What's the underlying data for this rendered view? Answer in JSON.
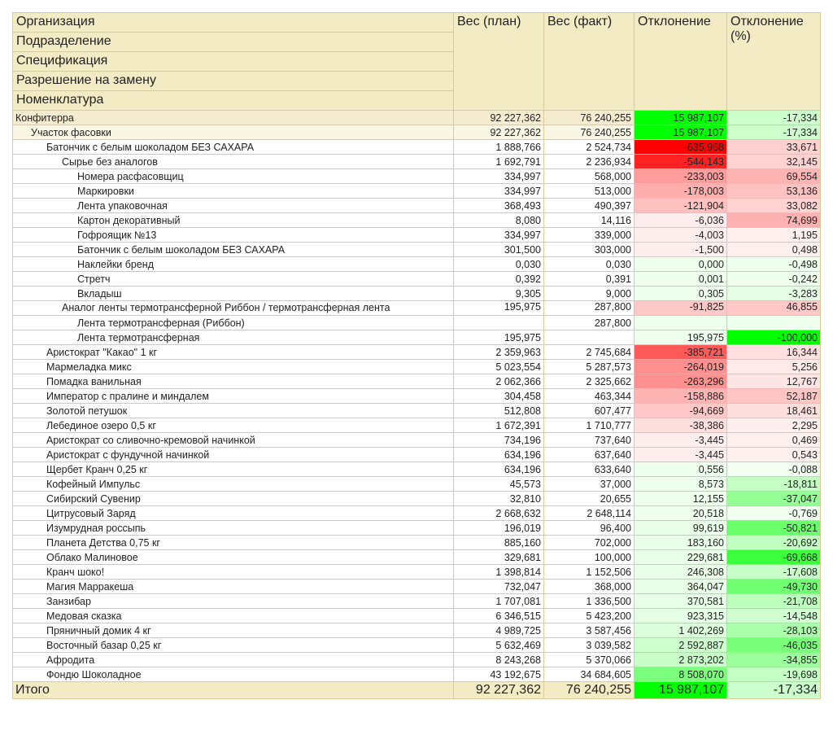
{
  "header": {
    "grouping": [
      "Организация",
      "Подразделение",
      "Спецификация",
      "Разрешение на замену",
      "Номенклатура"
    ],
    "plan": "Вес (план)",
    "fact": "Вес (факт)",
    "deviation": "Отклонение",
    "deviation_pct": "Отклонение (%)"
  },
  "rows": [
    {
      "level": 0,
      "name": "Конфитерра",
      "plan": "92 227,362",
      "fact": "76 240,255",
      "dev": "15 987,107",
      "pct": "-17,334",
      "dev_bg": "#00ff00",
      "pct_bg": "#ccffcc"
    },
    {
      "level": 1,
      "name": "Участок фасовки",
      "plan": "92 227,362",
      "fact": "76 240,255",
      "dev": "15 987,107",
      "pct": "-17,334",
      "dev_bg": "#00ff00",
      "pct_bg": "#ccffcc"
    },
    {
      "level": 2,
      "name": "Батончик с белым шоколадом БЕЗ САХАРА",
      "plan": "1 888,766",
      "fact": "2 524,734",
      "dev": "-635,968",
      "pct": "33,671",
      "dev_bg": "#ff0000",
      "pct_bg": "#ffd0d0"
    },
    {
      "level": 3,
      "name": "Сырье без аналогов",
      "plan": "1 692,791",
      "fact": "2 236,934",
      "dev": "-544,143",
      "pct": "32,145",
      "dev_bg": "#ff2222",
      "pct_bg": "#ffd2d2"
    },
    {
      "level": 4,
      "name": "Номера расфасовщиц",
      "plan": "334,997",
      "fact": "568,000",
      "dev": "-233,003",
      "pct": "69,554",
      "dev_bg": "#ff9c9c",
      "pct_bg": "#ffb4b4"
    },
    {
      "level": 4,
      "name": "Маркировки",
      "plan": "334,997",
      "fact": "513,000",
      "dev": "-178,003",
      "pct": "53,136",
      "dev_bg": "#ffaeae",
      "pct_bg": "#ffc2c2"
    },
    {
      "level": 4,
      "name": "Лента упаковочная",
      "plan": "368,493",
      "fact": "490,397",
      "dev": "-121,904",
      "pct": "33,082",
      "dev_bg": "#ffc0c0",
      "pct_bg": "#ffd2d2"
    },
    {
      "level": 4,
      "name": "Картон декоративный",
      "plan": "8,080",
      "fact": "14,116",
      "dev": "-6,036",
      "pct": "74,699",
      "dev_bg": "#ffecec",
      "pct_bg": "#ffb0b0"
    },
    {
      "level": 4,
      "name": "Гофроящик №13",
      "plan": "334,997",
      "fact": "339,000",
      "dev": "-4,003",
      "pct": "1,195",
      "dev_bg": "#ffeeee",
      "pct_bg": "#fff0f0"
    },
    {
      "level": 4,
      "name": "Батончик с белым шоколадом БЕЗ САХАРА",
      "plan": "301,500",
      "fact": "303,000",
      "dev": "-1,500",
      "pct": "0,498",
      "dev_bg": "#ffeeee",
      "pct_bg": "#fff0f0"
    },
    {
      "level": 4,
      "name": "Наклейки бренд",
      "plan": "0,030",
      "fact": "0,030",
      "dev": "0,000",
      "pct": "-0,498",
      "dev_bg": "#eeffee",
      "pct_bg": "#eeffee"
    },
    {
      "level": 4,
      "name": "Стретч",
      "plan": "0,392",
      "fact": "0,391",
      "dev": "0,001",
      "pct": "-0,242",
      "dev_bg": "#eeffee",
      "pct_bg": "#eeffee"
    },
    {
      "level": 4,
      "name": "Вкладыш",
      "plan": "9,305",
      "fact": "9,000",
      "dev": "0,305",
      "pct": "-3,283",
      "dev_bg": "#eeffee",
      "pct_bg": "#e6ffe6"
    },
    {
      "level": 3,
      "name": "Аналог ленты термотрансферной Риббон / термотрансферная лента",
      "plan": "195,975",
      "fact": "287,800",
      "dev": "-91,825",
      "pct": "46,855",
      "dev_bg": "#ffc8c8",
      "pct_bg": "#ffc8c8",
      "wrap": true
    },
    {
      "level": 4,
      "name": "Лента термотрансферная (Риббон)",
      "plan": "",
      "fact": "287,800",
      "dev": "",
      "pct": "",
      "dev_bg": "#eeffee",
      "pct_bg": "#eeffee"
    },
    {
      "level": 4,
      "name": "Лента термотрансферная",
      "plan": "195,975",
      "fact": "",
      "dev": "195,975",
      "pct": "-100,000",
      "dev_bg": "#eeffee",
      "pct_bg": "#00ff00"
    },
    {
      "level": 2,
      "name": "Аристократ \"Какао\" 1 кг",
      "plan": "2 359,963",
      "fact": "2 745,684",
      "dev": "-385,721",
      "pct": "16,344",
      "dev_bg": "#ff5a5a",
      "pct_bg": "#ffe0e0"
    },
    {
      "level": 2,
      "name": "Мармеладка микс",
      "plan": "5 023,554",
      "fact": "5 287,573",
      "dev": "-264,019",
      "pct": "5,256",
      "dev_bg": "#ff9090",
      "pct_bg": "#ffeaea"
    },
    {
      "level": 2,
      "name": "Помадка ванильная",
      "plan": "2 062,366",
      "fact": "2 325,662",
      "dev": "-263,296",
      "pct": "12,767",
      "dev_bg": "#ff9090",
      "pct_bg": "#ffe4e4"
    },
    {
      "level": 2,
      "name": "Император с пралине и миндалем",
      "plan": "304,458",
      "fact": "463,344",
      "dev": "-158,886",
      "pct": "52,187",
      "dev_bg": "#ffb4b4",
      "pct_bg": "#ffc4c4"
    },
    {
      "level": 2,
      "name": "Золотой петушок",
      "plan": "512,808",
      "fact": "607,477",
      "dev": "-94,669",
      "pct": "18,461",
      "dev_bg": "#ffc8c8",
      "pct_bg": "#ffdede"
    },
    {
      "level": 2,
      "name": "Лебединое озеро 0,5 кг",
      "plan": "1 672,391",
      "fact": "1 710,777",
      "dev": "-38,386",
      "pct": "2,295",
      "dev_bg": "#ffdede",
      "pct_bg": "#ffeeee"
    },
    {
      "level": 2,
      "name": "Аристократ со сливочно-кремовой начинкой",
      "plan": "734,196",
      "fact": "737,640",
      "dev": "-3,445",
      "pct": "0,469",
      "dev_bg": "#ffeeee",
      "pct_bg": "#fff0f0"
    },
    {
      "level": 2,
      "name": "Аристократ с фундучной начинкой",
      "plan": "634,196",
      "fact": "637,640",
      "dev": "-3,445",
      "pct": "0,543",
      "dev_bg": "#ffeeee",
      "pct_bg": "#fff0f0"
    },
    {
      "level": 2,
      "name": "Щербет Кранч 0,25 кг",
      "plan": "634,196",
      "fact": "633,640",
      "dev": "0,556",
      "pct": "-0,088",
      "dev_bg": "#eeffee",
      "pct_bg": "#f2fff2"
    },
    {
      "level": 2,
      "name": "Кофейный Импульс",
      "plan": "45,573",
      "fact": "37,000",
      "dev": "8,573",
      "pct": "-18,811",
      "dev_bg": "#eeffee",
      "pct_bg": "#c4ffc4"
    },
    {
      "level": 2,
      "name": "Сибирский Сувенир",
      "plan": "32,810",
      "fact": "20,655",
      "dev": "12,155",
      "pct": "-37,047",
      "dev_bg": "#eeffee",
      "pct_bg": "#94ff94"
    },
    {
      "level": 2,
      "name": "Цитрусовый Заряд",
      "plan": "2 668,632",
      "fact": "2 648,114",
      "dev": "20,518",
      "pct": "-0,769",
      "dev_bg": "#eeffee",
      "pct_bg": "#f0fff0"
    },
    {
      "level": 2,
      "name": "Изумрудная россыпь",
      "plan": "196,019",
      "fact": "96,400",
      "dev": "99,619",
      "pct": "-50,821",
      "dev_bg": "#eaffea",
      "pct_bg": "#6cff6c"
    },
    {
      "level": 2,
      "name": "Планета Детства 0,75 кг",
      "plan": "885,160",
      "fact": "702,000",
      "dev": "183,160",
      "pct": "-20,692",
      "dev_bg": "#eaffea",
      "pct_bg": "#c0ffc0"
    },
    {
      "level": 2,
      "name": "Облако Малиновое",
      "plan": "329,681",
      "fact": "100,000",
      "dev": "229,681",
      "pct": "-69,668",
      "dev_bg": "#eaffea",
      "pct_bg": "#3cff3c"
    },
    {
      "level": 2,
      "name": "Кранч шоко!",
      "plan": "1 398,814",
      "fact": "1 152,506",
      "dev": "246,308",
      "pct": "-17,608",
      "dev_bg": "#eaffea",
      "pct_bg": "#c8ffc8"
    },
    {
      "level": 2,
      "name": "Магия Марракеша",
      "plan": "732,047",
      "fact": "368,000",
      "dev": "364,047",
      "pct": "-49,730",
      "dev_bg": "#e8ffe8",
      "pct_bg": "#70ff70"
    },
    {
      "level": 2,
      "name": "Занзибар",
      "plan": "1 707,081",
      "fact": "1 336,500",
      "dev": "370,581",
      "pct": "-21,708",
      "dev_bg": "#e8ffe8",
      "pct_bg": "#bcffbc"
    },
    {
      "level": 2,
      "name": "Медовая сказка",
      "plan": "6 346,515",
      "fact": "5 423,200",
      "dev": "923,315",
      "pct": "-14,548",
      "dev_bg": "#e4ffe4",
      "pct_bg": "#d0ffd0"
    },
    {
      "level": 2,
      "name": "Пряничный домик 4 кг",
      "plan": "4 989,725",
      "fact": "3 587,456",
      "dev": "1 402,269",
      "pct": "-28,103",
      "dev_bg": "#dcffdc",
      "pct_bg": "#aaffaa"
    },
    {
      "level": 2,
      "name": "Восточный базар 0,25 кг",
      "plan": "5 632,469",
      "fact": "3 039,582",
      "dev": "2 592,887",
      "pct": "-46,035",
      "dev_bg": "#ccffcc",
      "pct_bg": "#7aff7a"
    },
    {
      "level": 2,
      "name": "Афродита",
      "plan": "8 243,268",
      "fact": "5 370,066",
      "dev": "2 873,202",
      "pct": "-34,855",
      "dev_bg": "#c8ffc8",
      "pct_bg": "#9cff9c"
    },
    {
      "level": 2,
      "name": "Фондю Шоколадное",
      "plan": "43 192,675",
      "fact": "34 684,605",
      "dev": "8 508,070",
      "pct": "-19,698",
      "dev_bg": "#7cff7c",
      "pct_bg": "#c4ffc4"
    }
  ],
  "total": {
    "label": "Итого",
    "plan": "92 227,362",
    "fact": "76 240,255",
    "dev": "15 987,107",
    "pct": "-17,334",
    "dev_bg": "#00ff00",
    "pct_bg": "#ccffcc"
  }
}
